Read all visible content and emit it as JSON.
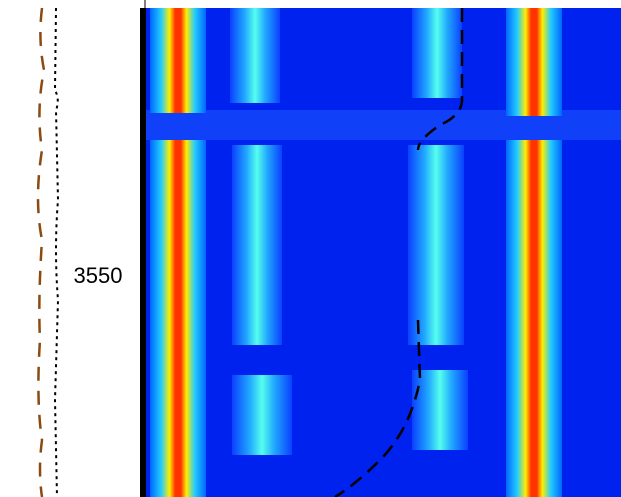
{
  "depth_label": "3550"
}
